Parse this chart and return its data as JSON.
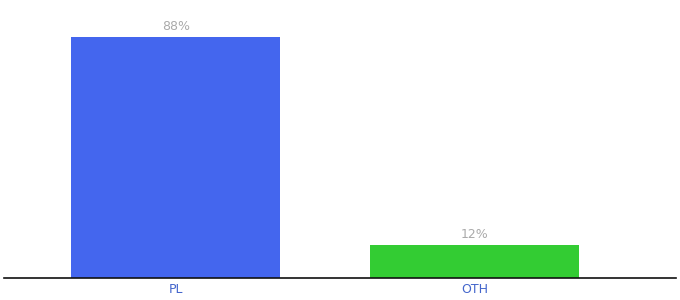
{
  "categories": [
    "PL",
    "OTH"
  ],
  "values": [
    88,
    12
  ],
  "bar_colors": [
    "#4466ee",
    "#33cc33"
  ],
  "label_texts": [
    "88%",
    "12%"
  ],
  "background_color": "#ffffff",
  "label_color": "#aaaaaa",
  "tick_label_color": "#4466cc",
  "ylim": [
    0,
    100
  ],
  "bar_width": 0.28,
  "label_fontsize": 9,
  "tick_fontsize": 9,
  "x_positions": [
    0.28,
    0.68
  ]
}
